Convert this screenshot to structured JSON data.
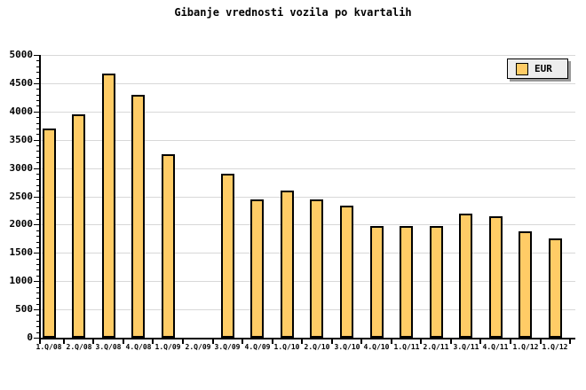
{
  "title": "Gibanje vrednosti vozila po kvartalih",
  "legend": {
    "label": "EUR"
  },
  "colors": {
    "background": "#FFFFFF",
    "bar_fill": "#FFCC66",
    "bar_border": "#000000",
    "gridline": "#D8D8D8",
    "axis": "#000000",
    "legend_bg": "#EDEDED",
    "legend_shadow": "#999999",
    "text": "#000000"
  },
  "chart_data": {
    "type": "bar",
    "title": "Gibanje vrednosti vozila po kvartalih",
    "categories": [
      "1.Q/08",
      "2.Q/08",
      "3.Q/08",
      "4.Q/08",
      "1.Q/09",
      "2.Q/09",
      "3.Q/09",
      "4.Q/09",
      "1.Q/10",
      "2.Q/10",
      "3.Q/10",
      "4.Q/10",
      "1.Q/11",
      "2.Q/11",
      "3.Q/11",
      "4.Q/11",
      "1.Q/12",
      "1.Q/12"
    ],
    "series": [
      {
        "name": "EUR",
        "values": [
          3700,
          3950,
          4670,
          4300,
          3250,
          0,
          2900,
          2450,
          2600,
          2450,
          2330,
          1980,
          1980,
          1970,
          2200,
          2150,
          1880,
          1760
        ]
      }
    ],
    "xlabel": "",
    "ylabel": "",
    "ylim": [
      0,
      5000
    ],
    "yticks": [
      0,
      500,
      1000,
      1500,
      2000,
      2500,
      3000,
      3500,
      4000,
      4500,
      5000
    ],
    "ytick_minor_step": 100,
    "grid": true,
    "legend_position": "top-right",
    "legend_entries": [
      "EUR"
    ]
  }
}
